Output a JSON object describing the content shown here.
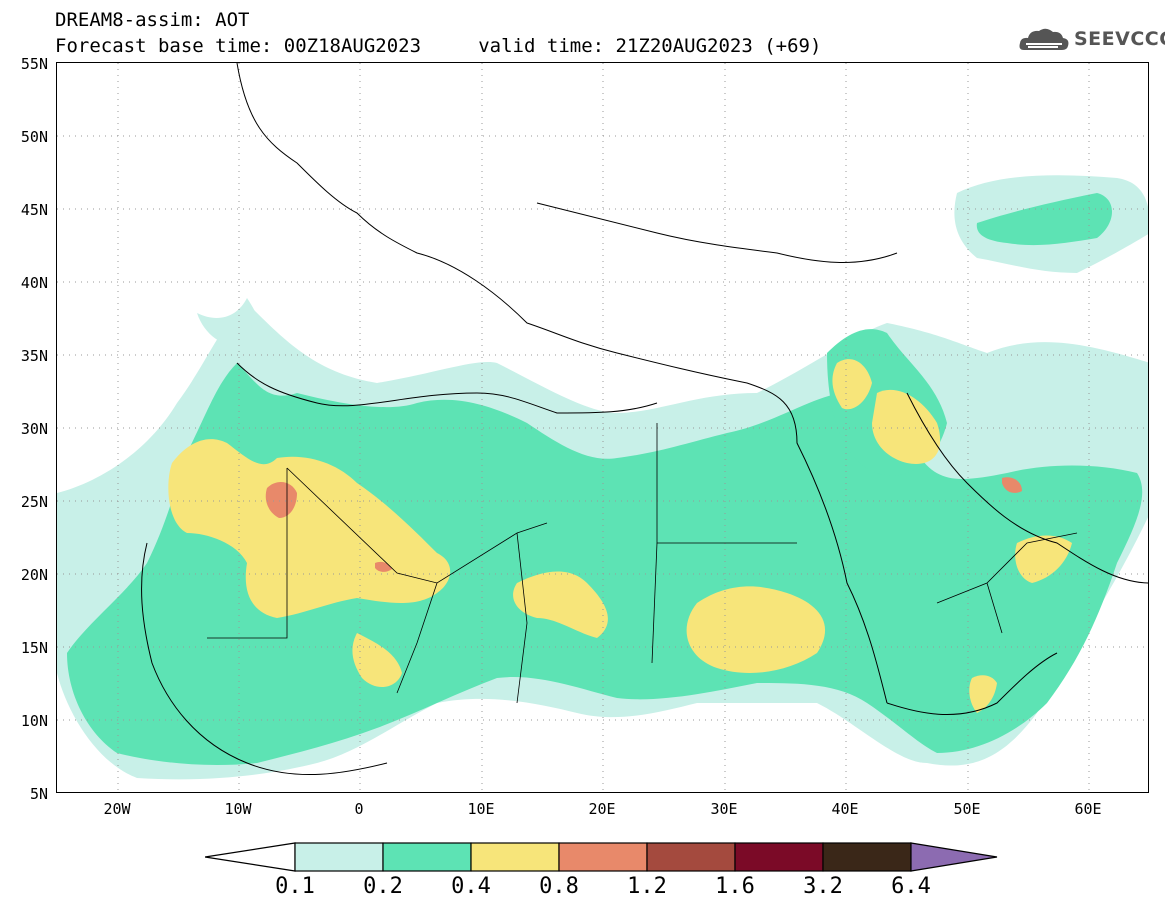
{
  "header": {
    "line1": "DREAM8-assim: AOT",
    "line2": "Forecast base time: 00Z18AUG2023     valid time: 21Z20AUG2023 (+69)"
  },
  "logo": {
    "text": "SEEVCCC",
    "icon": "cloud-logo-icon"
  },
  "map": {
    "lon_range": [
      -25,
      65
    ],
    "lat_range": [
      5,
      55
    ],
    "lat_ticks": [
      "55N",
      "50N",
      "45N",
      "40N",
      "35N",
      "30N",
      "25N",
      "20N",
      "15N",
      "10N",
      "5N"
    ],
    "lon_ticks": [
      "20W",
      "10W",
      "0",
      "10E",
      "20E",
      "30E",
      "40E",
      "50E",
      "60E"
    ],
    "grid": "dotted"
  },
  "colorbar": {
    "labels": [
      "0.1",
      "0.2",
      "0.4",
      "0.8",
      "1.2",
      "1.6",
      "3.2",
      "6.4"
    ],
    "colors": [
      "#ffffff",
      "#c8f0e8",
      "#5de3b4",
      "#f7e57a",
      "#e8896a",
      "#a44a3e",
      "#7b0a27",
      "#3a2718",
      "#8c6bb1"
    ]
  }
}
